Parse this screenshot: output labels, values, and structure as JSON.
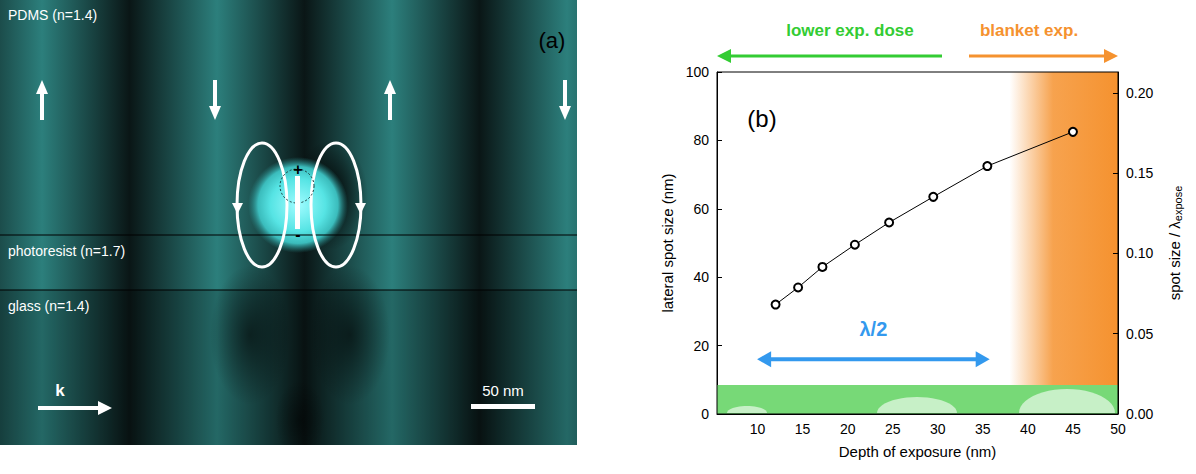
{
  "panel_a": {
    "letter": "(a)",
    "layers": [
      "PDMS (n=1.4)",
      "photoresist (n=1.7)",
      "glass (n=1.4)"
    ],
    "wave_vector": "k",
    "scale_bar": "50 nm",
    "dipole_charges": [
      "+",
      "-"
    ]
  },
  "chart_data": {
    "type": "line",
    "panel_label": "(b)",
    "xlabel": "Depth of exposure (nm)",
    "ylabel": "lateral spot size (nm)",
    "y2label": "spot size / λexpose",
    "x": [
      12,
      14.5,
      17.2,
      20.8,
      24.6,
      29.5,
      35.5,
      45
    ],
    "values": [
      32,
      37,
      43,
      49.5,
      56,
      63.5,
      72.5,
      82.5
    ],
    "color": "#000000",
    "marker": "open_circle",
    "line_style": "solid",
    "xlim": [
      5.5,
      50
    ],
    "xticks": [
      10,
      15,
      20,
      25,
      30,
      35,
      40,
      45,
      50
    ],
    "ylim": [
      0,
      100
    ],
    "yticks": [
      0,
      20,
      40,
      60,
      80,
      100
    ],
    "y2lim": [
      0,
      0.213
    ],
    "y2ticks": [
      {
        "value": 0,
        "label": "0.00"
      },
      {
        "value": 0.05,
        "label": "0.05"
      },
      {
        "value": 0.1,
        "label": "0.10"
      },
      {
        "value": 0.15,
        "label": "0.15"
      },
      {
        "value": 0.2,
        "label": "0.20"
      }
    ],
    "grid": false,
    "annotations": [
      {
        "text": "lower exp. dose",
        "color": "#33cc33"
      },
      {
        "text": "blanket exp.",
        "color": "#f5922f"
      },
      {
        "text": "λ/2",
        "color": "#3399ee"
      }
    ]
  }
}
